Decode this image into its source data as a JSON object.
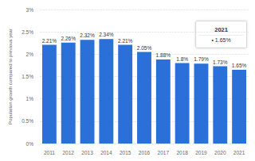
{
  "chart_data": {
    "type": "bar",
    "y_label": "Population growth compared to previous year",
    "categories": [
      "2011",
      "2012",
      "2013",
      "2014",
      "2015",
      "2016",
      "2017",
      "2018",
      "2019",
      "2020",
      "2021"
    ],
    "values": [
      2.21,
      2.26,
      2.32,
      2.34,
      2.21,
      2.05,
      1.88,
      1.8,
      1.79,
      1.73,
      1.65
    ],
    "value_labels": [
      "2.21%",
      "2.26%",
      "2.32%",
      "2.34%",
      "2.21%",
      "2.05%",
      "1.88%",
      "1.8%",
      "1.79%",
      "1.73%",
      "1.65%"
    ],
    "color": "#2b70d9",
    "ylim": [
      0,
      3
    ],
    "yticks": [
      {
        "value": 0,
        "label": "0%"
      },
      {
        "value": 0.5,
        "label": "0.5%"
      },
      {
        "value": 1,
        "label": "1%"
      },
      {
        "value": 1.5,
        "label": "1.5%"
      },
      {
        "value": 2,
        "label": "2%"
      },
      {
        "value": 2.5,
        "label": "2.5%"
      },
      {
        "value": 3,
        "label": "3%"
      }
    ],
    "grid": true,
    "data_labels": true,
    "annotations": [
      "2021",
      "• 1.65%"
    ]
  }
}
